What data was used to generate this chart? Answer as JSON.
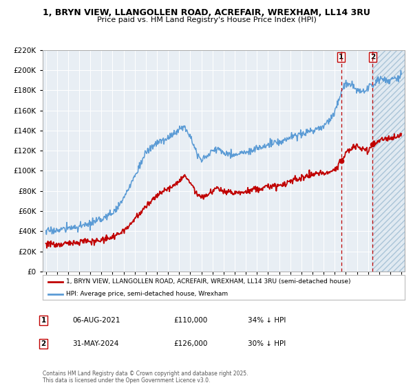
{
  "title1": "1, BRYN VIEW, LLANGOLLEN ROAD, ACREFAIR, WREXHAM, LL14 3RU",
  "title2": "Price paid vs. HM Land Registry's House Price Index (HPI)",
  "bg_color": "#ffffff",
  "plot_bg_color": "#e8eef4",
  "hpi_color": "#5b9bd5",
  "price_color": "#c00000",
  "dashed_line_color": "#c00000",
  "marker1_date_x": 2021.596,
  "marker2_date_x": 2024.415,
  "sale1_price": 110000,
  "sale2_price": 126000,
  "sale1_label": "06-AUG-2021",
  "sale1_amount": "£110,000",
  "sale1_hpi": "34% ↓ HPI",
  "sale2_label": "31-MAY-2024",
  "sale2_amount": "£126,000",
  "sale2_hpi": "30% ↓ HPI",
  "legend1": "1, BRYN VIEW, LLANGOLLEN ROAD, ACREFAIR, WREXHAM, LL14 3RU (semi-detached house)",
  "legend2": "HPI: Average price, semi-detached house, Wrexham",
  "footnote": "Contains HM Land Registry data © Crown copyright and database right 2025.\nThis data is licensed under the Open Government Licence v3.0.",
  "ylim": [
    0,
    220000
  ],
  "xlim_start": 1994.7,
  "xlim_end": 2027.3,
  "hpi_keypoints": [
    [
      1995.0,
      40000
    ],
    [
      1996.0,
      41000
    ],
    [
      1997.0,
      43000
    ],
    [
      1998.0,
      44500
    ],
    [
      1999.0,
      47000
    ],
    [
      2000.0,
      52000
    ],
    [
      2001.0,
      58000
    ],
    [
      2002.0,
      72000
    ],
    [
      2003.0,
      95000
    ],
    [
      2004.0,
      118000
    ],
    [
      2005.0,
      128000
    ],
    [
      2006.0,
      132000
    ],
    [
      2007.0,
      142000
    ],
    [
      2007.5,
      143000
    ],
    [
      2008.0,
      136000
    ],
    [
      2008.5,
      120000
    ],
    [
      2009.0,
      110000
    ],
    [
      2009.5,
      115000
    ],
    [
      2010.0,
      120000
    ],
    [
      2010.5,
      122000
    ],
    [
      2011.0,
      118000
    ],
    [
      2012.0,
      116000
    ],
    [
      2013.0,
      118000
    ],
    [
      2014.0,
      122000
    ],
    [
      2015.0,
      126000
    ],
    [
      2016.0,
      128000
    ],
    [
      2017.0,
      133000
    ],
    [
      2018.0,
      137000
    ],
    [
      2019.0,
      140000
    ],
    [
      2020.0,
      143000
    ],
    [
      2021.0,
      158000
    ],
    [
      2021.5,
      175000
    ],
    [
      2022.0,
      188000
    ],
    [
      2022.5,
      185000
    ],
    [
      2023.0,
      180000
    ],
    [
      2023.5,
      178000
    ],
    [
      2024.0,
      182000
    ],
    [
      2024.5,
      185000
    ],
    [
      2025.0,
      192000
    ],
    [
      2026.0,
      190000
    ],
    [
      2027.0,
      193000
    ]
  ],
  "price_keypoints": [
    [
      1995.0,
      28000
    ],
    [
      1996.0,
      27000
    ],
    [
      1997.0,
      28000
    ],
    [
      1998.0,
      29500
    ],
    [
      1999.0,
      30000
    ],
    [
      2000.0,
      31000
    ],
    [
      2001.0,
      34000
    ],
    [
      2002.0,
      40000
    ],
    [
      2003.0,
      52000
    ],
    [
      2004.0,
      65000
    ],
    [
      2005.0,
      75000
    ],
    [
      2006.0,
      82000
    ],
    [
      2007.0,
      90000
    ],
    [
      2007.5,
      95000
    ],
    [
      2008.0,
      88000
    ],
    [
      2008.5,
      78000
    ],
    [
      2009.0,
      74000
    ],
    [
      2009.5,
      76000
    ],
    [
      2010.0,
      80000
    ],
    [
      2010.5,
      82000
    ],
    [
      2011.0,
      80000
    ],
    [
      2012.0,
      78000
    ],
    [
      2013.0,
      79000
    ],
    [
      2014.0,
      82000
    ],
    [
      2015.0,
      84000
    ],
    [
      2016.0,
      86000
    ],
    [
      2017.0,
      89000
    ],
    [
      2018.0,
      93000
    ],
    [
      2019.0,
      96000
    ],
    [
      2020.0,
      98000
    ],
    [
      2021.0,
      100000
    ],
    [
      2021.596,
      110000
    ],
    [
      2022.0,
      117000
    ],
    [
      2022.5,
      122000
    ],
    [
      2023.0,
      125000
    ],
    [
      2023.5,
      122000
    ],
    [
      2024.0,
      120000
    ],
    [
      2024.415,
      126000
    ],
    [
      2025.0,
      130000
    ],
    [
      2026.0,
      132000
    ],
    [
      2027.0,
      136000
    ]
  ]
}
